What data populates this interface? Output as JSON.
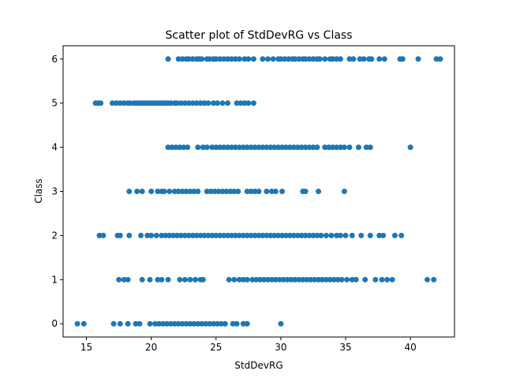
{
  "chart_data": {
    "type": "scatter",
    "title": "Scatter plot of StdDevRG vs Class",
    "xlabel": "StdDevRG",
    "ylabel": "Class",
    "xlim": [
      13.2,
      43.4
    ],
    "ylim": [
      -0.3,
      6.3
    ],
    "xticks": [
      15,
      20,
      25,
      30,
      35,
      40
    ],
    "yticks": [
      0,
      1,
      2,
      3,
      4,
      5,
      6
    ],
    "xtick_labels": [
      "15",
      "20",
      "25",
      "30",
      "35",
      "40"
    ],
    "ytick_labels": [
      "0",
      "1",
      "2",
      "3",
      "4",
      "5",
      "6"
    ],
    "grid": false,
    "legend": "none",
    "marker_color": "#1f77b4",
    "series": [
      {
        "class": 6,
        "x": [
          21.3,
          22.1,
          22.4,
          22.7,
          22.9,
          23.2,
          23.5,
          23.7,
          23.9,
          24.3,
          24.5,
          24.8,
          25.0,
          25.3,
          25.6,
          25.9,
          26.2,
          26.5,
          26.8,
          27.2,
          27.5,
          27.9,
          28.6,
          29.0,
          29.4,
          29.8,
          30.0,
          30.3,
          30.6,
          30.9,
          31.1,
          31.4,
          31.7,
          31.9,
          32.2,
          32.5,
          32.8,
          33.0,
          33.4,
          33.8,
          34.0,
          34.3,
          34.6,
          35.3,
          35.6,
          36.1,
          36.4,
          36.8,
          37.0,
          37.6,
          38.0,
          39.2,
          39.4,
          40.6,
          42.0,
          42.3
        ]
      },
      {
        "class": 5,
        "x": [
          15.7,
          15.9,
          16.1,
          17.0,
          17.3,
          17.6,
          17.9,
          18.2,
          18.4,
          18.7,
          18.9,
          19.1,
          19.3,
          19.5,
          19.7,
          19.9,
          20.1,
          20.3,
          20.5,
          20.7,
          20.9,
          21.1,
          21.3,
          21.5,
          21.8,
          22.0,
          22.3,
          22.6,
          22.9,
          23.2,
          23.5,
          23.8,
          24.1,
          24.4,
          24.8,
          25.1,
          25.5,
          25.9,
          26.6,
          26.9,
          27.2,
          27.5,
          27.9
        ]
      },
      {
        "class": 4,
        "x": [
          21.3,
          21.6,
          21.9,
          22.2,
          22.5,
          22.8,
          23.6,
          24.0,
          24.3,
          24.7,
          25.0,
          25.3,
          25.6,
          25.9,
          26.2,
          26.5,
          26.8,
          27.1,
          27.4,
          27.7,
          28.0,
          28.3,
          28.6,
          28.9,
          29.2,
          29.5,
          29.8,
          30.1,
          30.4,
          30.7,
          31.0,
          31.3,
          31.6,
          31.9,
          32.2,
          32.5,
          32.8,
          33.4,
          33.7,
          34.0,
          34.3,
          34.6,
          34.9,
          35.3,
          36.0,
          36.6,
          36.9,
          40.0
        ]
      },
      {
        "class": 3,
        "x": [
          18.3,
          18.9,
          19.3,
          20.0,
          20.5,
          20.8,
          21.0,
          21.4,
          21.8,
          22.1,
          22.4,
          22.7,
          23.0,
          23.3,
          23.6,
          24.3,
          24.6,
          24.9,
          25.2,
          25.5,
          25.8,
          26.1,
          26.4,
          26.7,
          27.4,
          27.7,
          28.0,
          28.3,
          28.9,
          29.3,
          29.6,
          30.1,
          31.7,
          31.9,
          32.9,
          34.9
        ]
      },
      {
        "class": 2,
        "x": [
          16.0,
          16.3,
          17.4,
          17.6,
          18.3,
          19.2,
          19.7,
          20.0,
          20.4,
          20.8,
          21.1,
          21.4,
          21.7,
          22.0,
          22.3,
          22.6,
          22.9,
          23.2,
          23.5,
          23.8,
          24.1,
          24.4,
          24.7,
          25.0,
          25.3,
          25.6,
          25.9,
          26.2,
          26.5,
          26.8,
          27.1,
          27.4,
          27.7,
          28.0,
          28.3,
          28.6,
          28.9,
          29.2,
          29.5,
          29.8,
          30.1,
          30.4,
          30.7,
          31.0,
          31.3,
          31.6,
          31.9,
          32.2,
          32.5,
          32.8,
          33.1,
          33.5,
          33.9,
          34.3,
          34.6,
          35.0,
          35.5,
          36.2,
          36.9,
          37.6,
          37.9,
          38.8,
          39.3
        ]
      },
      {
        "class": 1,
        "x": [
          17.5,
          17.9,
          18.2,
          19.3,
          19.9,
          20.5,
          20.8,
          21.3,
          22.2,
          22.6,
          23.0,
          23.4,
          23.8,
          24.0,
          26.0,
          26.4,
          26.8,
          27.1,
          27.4,
          27.8,
          28.1,
          28.4,
          28.7,
          29.0,
          29.3,
          29.6,
          29.9,
          30.2,
          30.5,
          30.8,
          31.1,
          31.4,
          31.7,
          32.0,
          32.3,
          32.6,
          32.9,
          33.2,
          33.5,
          33.8,
          34.1,
          34.4,
          34.7,
          35.1,
          35.5,
          35.8,
          36.5,
          37.3,
          37.8,
          38.2,
          38.6,
          41.3,
          41.8
        ]
      },
      {
        "class": 0,
        "x": [
          14.3,
          14.8,
          17.1,
          17.6,
          18.2,
          18.8,
          19.1,
          19.9,
          20.3,
          20.6,
          20.9,
          21.2,
          21.5,
          21.8,
          22.1,
          22.4,
          22.7,
          23.0,
          23.3,
          23.6,
          23.9,
          24.2,
          24.5,
          24.8,
          25.1,
          25.4,
          25.7,
          26.3,
          26.6,
          27.1,
          27.4,
          30.0
        ]
      }
    ]
  }
}
